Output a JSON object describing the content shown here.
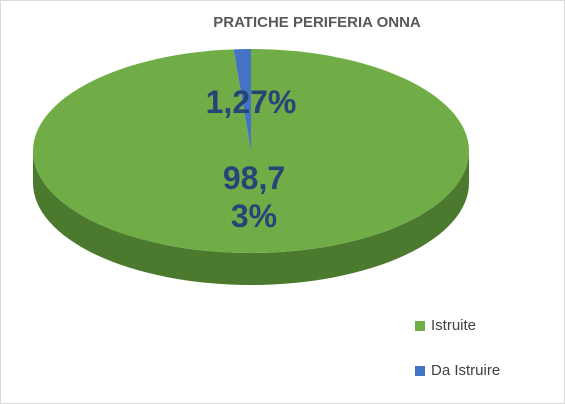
{
  "chart_data": {
    "type": "pie",
    "title": "PRATICHE PERIFERIA ONNA",
    "categories": [
      "Istruite",
      "Da Istruire"
    ],
    "values": [
      98.73,
      1.27
    ],
    "value_labels": [
      "98,73%",
      "1,27%"
    ],
    "colors": [
      "#70ad47",
      "#4472c4"
    ]
  }
}
